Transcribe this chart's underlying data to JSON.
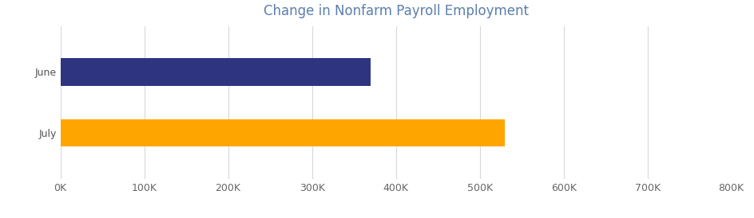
{
  "title": "Change in Nonfarm Payroll Employment",
  "title_color": "#5b7fad",
  "categories": [
    "July",
    "June"
  ],
  "values": [
    530000,
    370000
  ],
  "bar_colors": [
    "#FFA500",
    "#2E3480"
  ],
  "xlim": [
    0,
    800000
  ],
  "xticks": [
    0,
    100000,
    200000,
    300000,
    400000,
    500000,
    600000,
    700000,
    800000
  ],
  "xtick_labels": [
    "0K",
    "100K",
    "200K",
    "300K",
    "400K",
    "500K",
    "600K",
    "700K",
    "800K"
  ],
  "background_color": "#ffffff",
  "grid_color": "#d8d8d8",
  "tick_label_color": "#666666",
  "ylabel_color": "#555555",
  "title_fontsize": 12,
  "tick_fontsize": 9,
  "bar_height": 0.45
}
